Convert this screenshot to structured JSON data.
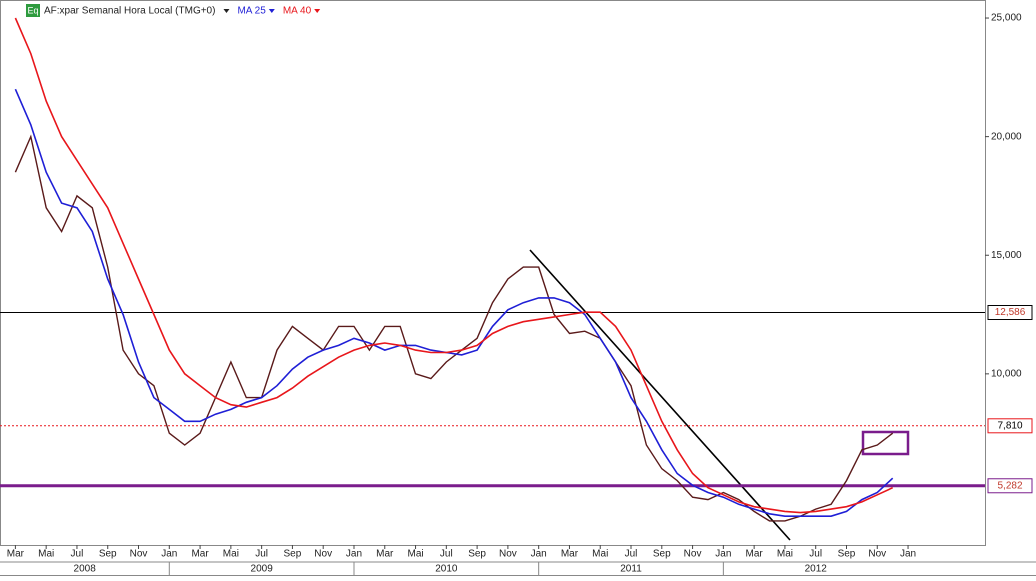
{
  "chart_data": {
    "type": "line",
    "title": "AF:xpar Semanal Hora Local (TMG+0)",
    "badge": "Eq",
    "x": [
      "2008-03",
      "2008-04",
      "2008-05",
      "2008-06",
      "2008-07",
      "2008-08",
      "2008-09",
      "2008-10",
      "2008-11",
      "2008-12",
      "2009-01",
      "2009-02",
      "2009-03",
      "2009-04",
      "2009-05",
      "2009-06",
      "2009-07",
      "2009-08",
      "2009-09",
      "2009-10",
      "2009-11",
      "2009-12",
      "2010-01",
      "2010-02",
      "2010-03",
      "2010-04",
      "2010-05",
      "2010-06",
      "2010-07",
      "2010-08",
      "2010-09",
      "2010-10",
      "2010-11",
      "2010-12",
      "2011-01",
      "2011-02",
      "2011-03",
      "2011-04",
      "2011-05",
      "2011-06",
      "2011-07",
      "2011-08",
      "2011-09",
      "2011-10",
      "2011-11",
      "2011-12",
      "2012-01",
      "2012-02",
      "2012-03",
      "2012-04",
      "2012-05",
      "2012-06",
      "2012-07",
      "2012-08",
      "2012-09",
      "2012-10",
      "2012-11",
      "2012-12"
    ],
    "series": [
      {
        "name": "AF:xpar Semanal Hora Local (TMG+0)",
        "color": "#5a1a1a",
        "width": 1.4,
        "values": [
          18500,
          20000,
          17000,
          16000,
          17500,
          17000,
          14500,
          11000,
          10000,
          9500,
          7500,
          7000,
          7500,
          9000,
          10500,
          9000,
          9000,
          11000,
          12000,
          11500,
          11000,
          12000,
          12000,
          11000,
          12000,
          12000,
          10000,
          9800,
          10500,
          11000,
          11500,
          13000,
          14000,
          14500,
          14500,
          12500,
          11700,
          11800,
          11500,
          10500,
          9500,
          7000,
          6000,
          5500,
          4800,
          4700,
          5000,
          4700,
          4200,
          3800,
          3800,
          4000,
          4300,
          4500,
          5500,
          6800,
          7000,
          7500
        ]
      },
      {
        "name": "MA 25",
        "color": "#1f1fd6",
        "width": 1.6,
        "values": [
          22000,
          20500,
          18500,
          17200,
          17000,
          16000,
          14000,
          12500,
          10500,
          9000,
          8500,
          8000,
          8000,
          8300,
          8500,
          8800,
          9000,
          9500,
          10200,
          10700,
          11000,
          11200,
          11500,
          11300,
          11000,
          11200,
          11200,
          11000,
          10900,
          10800,
          11000,
          12000,
          12700,
          13000,
          13200,
          13200,
          13000,
          12500,
          11500,
          10500,
          9000,
          8000,
          6800,
          5800,
          5300,
          5000,
          4800,
          4500,
          4300,
          4100,
          4000,
          4000,
          4000,
          4000,
          4200,
          4700,
          5000,
          5600
        ]
      },
      {
        "name": "MA 40",
        "color": "#e8161b",
        "width": 1.6,
        "values": [
          25000,
          23500,
          21500,
          20000,
          19000,
          18000,
          17000,
          15500,
          14000,
          12500,
          11000,
          10000,
          9500,
          9000,
          8700,
          8600,
          8800,
          9000,
          9400,
          9900,
          10300,
          10700,
          11000,
          11200,
          11300,
          11200,
          11000,
          10900,
          10900,
          11000,
          11200,
          11700,
          12000,
          12200,
          12300,
          12400,
          12500,
          12600,
          12600,
          12000,
          11000,
          9500,
          8000,
          6800,
          5800,
          5200,
          4900,
          4600,
          4400,
          4300,
          4200,
          4150,
          4200,
          4300,
          4400,
          4600,
          4900,
          5200
        ]
      }
    ],
    "xlim": [
      "2008-02",
      "2013-06"
    ],
    "xticks": [
      {
        "value": "2008-03",
        "label": "Mar"
      },
      {
        "value": "2008-05",
        "label": "Mai"
      },
      {
        "value": "2008-07",
        "label": "Jul"
      },
      {
        "value": "2008-09",
        "label": "Sep"
      },
      {
        "value": "2008-11",
        "label": "Nov"
      },
      {
        "value": "2009-01",
        "label": "Jan"
      },
      {
        "value": "2009-03",
        "label": "Mar"
      },
      {
        "value": "2009-05",
        "label": "Mai"
      },
      {
        "value": "2009-07",
        "label": "Jul"
      },
      {
        "value": "2009-09",
        "label": "Sep"
      },
      {
        "value": "2009-11",
        "label": "Nov"
      },
      {
        "value": "2010-01",
        "label": "Jan"
      },
      {
        "value": "2010-03",
        "label": "Mar"
      },
      {
        "value": "2010-05",
        "label": "Mai"
      },
      {
        "value": "2010-07",
        "label": "Jul"
      },
      {
        "value": "2010-09",
        "label": "Sep"
      },
      {
        "value": "2010-11",
        "label": "Nov"
      },
      {
        "value": "2011-01",
        "label": "Jan"
      },
      {
        "value": "2011-03",
        "label": "Mar"
      },
      {
        "value": "2011-05",
        "label": "Mai"
      },
      {
        "value": "2011-07",
        "label": "Jul"
      },
      {
        "value": "2011-09",
        "label": "Sep"
      },
      {
        "value": "2011-11",
        "label": "Nov"
      },
      {
        "value": "2012-01",
        "label": "Jan"
      },
      {
        "value": "2012-03",
        "label": "Mar"
      },
      {
        "value": "2012-05",
        "label": "Mai"
      },
      {
        "value": "2012-07",
        "label": "Jul"
      },
      {
        "value": "2012-09",
        "label": "Sep"
      },
      {
        "value": "2012-11",
        "label": "Nov"
      },
      {
        "value": "2013-01",
        "label": "Jan"
      }
    ],
    "years": [
      "2008",
      "2009",
      "2010",
      "2011",
      "2012"
    ],
    "ylim": [
      2785,
      25760
    ],
    "yticks": [
      {
        "value": 10000,
        "label": "10,000"
      },
      {
        "value": 15000,
        "label": "15,000"
      },
      {
        "value": 20000,
        "label": "20,000"
      },
      {
        "value": 25000,
        "label": "25,000"
      }
    ],
    "levels": [
      {
        "value": 12586,
        "label": "12,586",
        "color": "#000000",
        "style": "solid"
      },
      {
        "value": 7810,
        "label": "7,810",
        "color": "#e8161b",
        "style": "dotted"
      },
      {
        "value": 5282,
        "label": "5,282",
        "color": "#7a1c8c",
        "style": "thick"
      }
    ]
  }
}
